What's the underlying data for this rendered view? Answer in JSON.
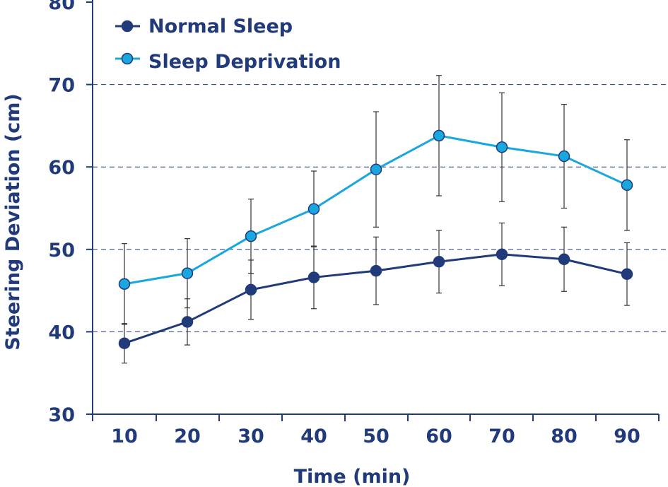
{
  "chart_data": {
    "type": "line",
    "title": "",
    "xlabel": "Time (min)",
    "ylabel": "Steering Deviation (cm)",
    "x": [
      10,
      20,
      30,
      40,
      50,
      60,
      70,
      80,
      90
    ],
    "x_tick_labels": [
      "10",
      "20",
      "30",
      "40",
      "50",
      "60",
      "70",
      "80",
      "90"
    ],
    "y_tick_labels": [
      "30",
      "40",
      "50",
      "60",
      "70",
      "80"
    ],
    "y_ticks": [
      30,
      40,
      50,
      60,
      70,
      80
    ],
    "ylim": [
      30,
      80
    ],
    "gridlines_at": [
      40,
      50,
      60,
      70
    ],
    "legend_position": "top-left",
    "series": [
      {
        "name": "Normal Sleep",
        "color": "#213a7a",
        "values": [
          38.6,
          41.2,
          45.1,
          46.6,
          47.4,
          48.5,
          49.4,
          48.8,
          47.0
        ],
        "error": [
          2.4,
          2.8,
          3.6,
          3.8,
          4.1,
          3.8,
          3.8,
          3.9,
          3.8
        ]
      },
      {
        "name": "Sleep Deprivation",
        "color": "#1aa6df",
        "values": [
          45.8,
          47.1,
          51.6,
          54.9,
          59.7,
          63.8,
          62.4,
          61.3,
          57.8
        ],
        "error": [
          4.9,
          4.2,
          4.5,
          4.6,
          7.0,
          7.3,
          6.6,
          6.3,
          5.5
        ]
      }
    ]
  }
}
